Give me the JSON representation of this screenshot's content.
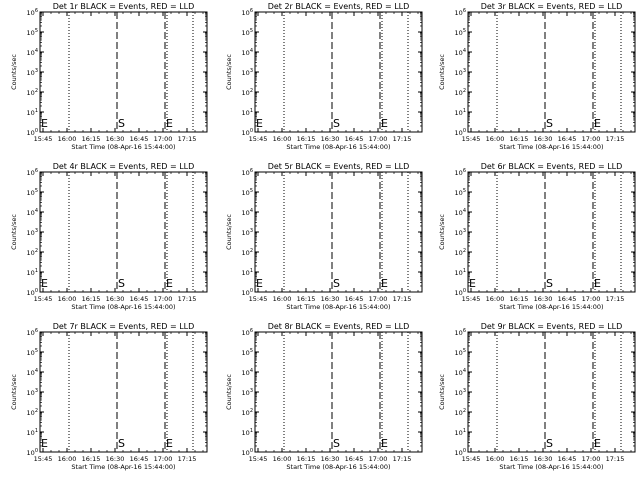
{
  "chart_data": [
    {
      "type": "line",
      "title": "Det 1r BLACK = Events, RED = LLD",
      "xlabel": "Start Time (08-Apr-16 15:44:00)",
      "ylabel": "Counts/sec",
      "xticks": [
        "15:45",
        "16:00",
        "16:15",
        "16:30",
        "16:45",
        "17:00",
        "17:15"
      ],
      "yticks": [
        "10^0",
        "10^1",
        "10^2",
        "10^3",
        "10^4",
        "10^5",
        "10^6"
      ],
      "ylim_log10": [
        0,
        6
      ],
      "series": [],
      "markers": [
        {
          "label": "S",
          "style": "dashed"
        },
        {
          "label": "E",
          "style": "dashed"
        }
      ],
      "start_label": "E"
    },
    {
      "type": "line",
      "title": "Det 2r BLACK = Events, RED = LLD",
      "xlabel": "Start Time (08-Apr-16 15:44:00)",
      "ylabel": "Counts/sec",
      "xticks": [
        "15:45",
        "16:00",
        "16:15",
        "16:30",
        "16:45",
        "17:00",
        "17:15"
      ],
      "yticks": [
        "10^0",
        "10^1",
        "10^2",
        "10^3",
        "10^4",
        "10^5",
        "10^6"
      ],
      "ylim_log10": [
        0,
        6
      ],
      "series": [],
      "markers": [
        {
          "label": "S",
          "style": "dashed"
        },
        {
          "label": "E",
          "style": "dashed"
        }
      ],
      "start_label": "E"
    },
    {
      "type": "line",
      "title": "Det 3r BLACK = Events, RED = LLD",
      "xlabel": "Start Time (08-Apr-16 15:44:00)",
      "ylabel": "Counts/sec",
      "xticks": [
        "15:45",
        "16:00",
        "16:15",
        "16:30",
        "16:45",
        "17:00",
        "17:15"
      ],
      "yticks": [
        "10^0",
        "10^1",
        "10^2",
        "10^3",
        "10^4",
        "10^5",
        "10^6"
      ],
      "ylim_log10": [
        0,
        6
      ],
      "series": [],
      "markers": [
        {
          "label": "S",
          "style": "dashed"
        },
        {
          "label": "E",
          "style": "dashed"
        }
      ],
      "start_label": ""
    },
    {
      "type": "line",
      "title": "Det 4r BLACK = Events, RED = LLD",
      "xlabel": "Start Time (08-Apr-16 15:44:00)",
      "ylabel": "Counts/sec",
      "xticks": [
        "15:45",
        "16:00",
        "16:15",
        "16:30",
        "16:45",
        "17:00",
        "17:15"
      ],
      "yticks": [
        "10^0",
        "10^1",
        "10^2",
        "10^3",
        "10^4",
        "10^5",
        "10^6"
      ],
      "ylim_log10": [
        0,
        6
      ],
      "series": [],
      "markers": [
        {
          "label": "S",
          "style": "dashed"
        },
        {
          "label": "E",
          "style": "dashed"
        }
      ],
      "start_label": "E"
    },
    {
      "type": "line",
      "title": "Det 5r BLACK = Events, RED = LLD",
      "xlabel": "Start Time (08-Apr-16 15:44:00)",
      "ylabel": "Counts/sec",
      "xticks": [
        "15:45",
        "16:00",
        "16:15",
        "16:30",
        "16:45",
        "17:00",
        "17:15"
      ],
      "yticks": [
        "10^0",
        "10^1",
        "10^2",
        "10^3",
        "10^4",
        "10^5",
        "10^6"
      ],
      "ylim_log10": [
        0,
        6
      ],
      "series": [],
      "markers": [
        {
          "label": "S",
          "style": "dashed"
        },
        {
          "label": "E",
          "style": "dashed"
        }
      ],
      "start_label": "E"
    },
    {
      "type": "line",
      "title": "Det 6r BLACK = Events, RED = LLD",
      "xlabel": "Start Time (08-Apr-16 15:44:00)",
      "ylabel": "Counts/sec",
      "xticks": [
        "15:45",
        "16:00",
        "16:15",
        "16:30",
        "16:45",
        "17:00",
        "17:15"
      ],
      "yticks": [
        "10^0",
        "10^1",
        "10^2",
        "10^3",
        "10^4",
        "10^5",
        "10^6"
      ],
      "ylim_log10": [
        0,
        6
      ],
      "series": [],
      "markers": [
        {
          "label": "S",
          "style": "dashed"
        },
        {
          "label": "E",
          "style": "dashed"
        }
      ],
      "start_label": "E"
    },
    {
      "type": "line",
      "title": "Det 7r BLACK = Events, RED = LLD",
      "xlabel": "Start Time (08-Apr-16 15:44:00)",
      "ylabel": "Counts/sec",
      "xticks": [
        "15:45",
        "16:00",
        "16:15",
        "16:30",
        "16:45",
        "17:00",
        "17:15"
      ],
      "yticks": [
        "10^0",
        "10^1",
        "10^2",
        "10^3",
        "10^4",
        "10^5",
        "10^6"
      ],
      "ylim_log10": [
        0,
        6
      ],
      "series": [],
      "markers": [
        {
          "label": "S",
          "style": "dashed"
        },
        {
          "label": "E",
          "style": "dashed"
        }
      ],
      "start_label": "E"
    },
    {
      "type": "line",
      "title": "Det 8r BLACK = Events, RED = LLD",
      "xlabel": "Start Time (08-Apr-16 15:44:00)",
      "ylabel": "Counts/sec",
      "xticks": [
        "15:45",
        "16:00",
        "16:15",
        "16:30",
        "16:45",
        "17:00",
        "17:15"
      ],
      "yticks": [
        "10^0",
        "10^1",
        "10^2",
        "10^3",
        "10^4",
        "10^5",
        "10^6"
      ],
      "ylim_log10": [
        0,
        6
      ],
      "series": [],
      "markers": [
        {
          "label": "S",
          "style": "dashed"
        },
        {
          "label": "E",
          "style": "dashed"
        }
      ],
      "start_label": ""
    },
    {
      "type": "line",
      "title": "Det 9r BLACK = Events, RED = LLD",
      "xlabel": "Start Time (08-Apr-16 15:44:00)",
      "ylabel": "Counts/sec",
      "xticks": [
        "15:45",
        "16:00",
        "16:15",
        "16:30",
        "16:45",
        "17:00",
        "17:15"
      ],
      "yticks": [
        "10^0",
        "10^1",
        "10^2",
        "10^3",
        "10^4",
        "10^5",
        "10^6"
      ],
      "ylim_log10": [
        0,
        6
      ],
      "series": [],
      "markers": [
        {
          "label": "S",
          "style": "dashed"
        },
        {
          "label": "E",
          "style": "dashed"
        }
      ],
      "start_label": ""
    }
  ]
}
